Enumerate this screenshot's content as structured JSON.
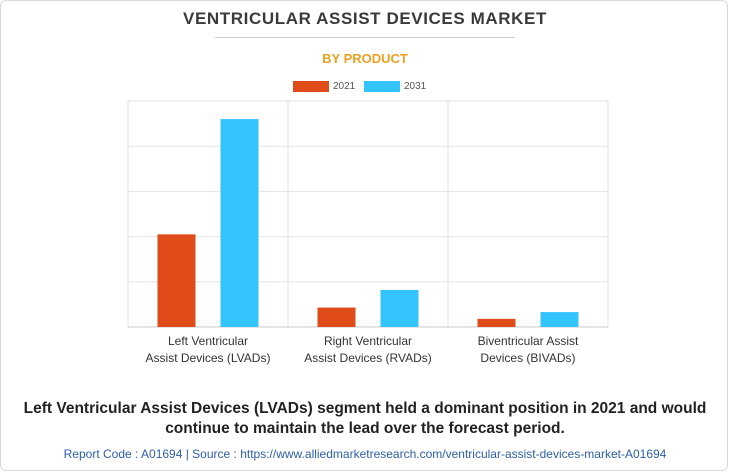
{
  "header": {
    "title": "VENTRICULAR ASSIST DEVICES MARKET",
    "subtitle": "BY PRODUCT"
  },
  "chart_data": {
    "type": "bar",
    "title": "VENTRICULAR ASSIST DEVICES MARKET",
    "subtitle": "BY PRODUCT",
    "categories": [
      [
        "Left Ventricular",
        "Assist Devices (LVADs)"
      ],
      [
        "Right Ventricular",
        "Assist Devices (RVADs)"
      ],
      [
        "Biventricular Assist",
        "Devices (BIVADs)"
      ]
    ],
    "series": [
      {
        "name": "2021",
        "color": "#e04b1a",
        "values": [
          2.05,
          0.43,
          0.18
        ]
      },
      {
        "name": "2031",
        "color": "#33c4ff",
        "values": [
          4.6,
          0.82,
          0.33
        ]
      }
    ],
    "ylim": [
      0,
      5
    ],
    "gridlines": 5,
    "grid": true,
    "legend": "top-center",
    "xlabel": "",
    "ylabel": ""
  },
  "footer": {
    "caption_line1": "Left Ventricular Assist Devices (LVADs) segment held a dominant position in 2021 and would",
    "caption_line2": "continue to maintain the lead over the forecast period.",
    "source": "Report Code : A01694  |  Source : https://www.alliedmarketresearch.com/ventricular-assist-devices-market-A01694"
  }
}
